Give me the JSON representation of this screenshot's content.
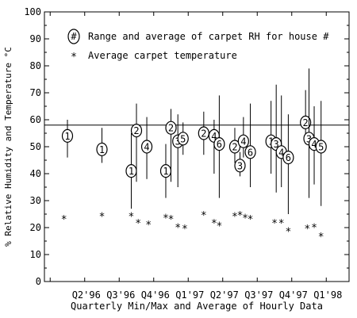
{
  "chart_data": {
    "type": "scatter",
    "xlabel": "Quarterly Min/Max and Average of Hourly Data",
    "ylabel": "% Relative Humidity and Temperature °C",
    "ylim": [
      0,
      100
    ],
    "y_ticks": [
      "0",
      "10",
      "20",
      "30",
      "40",
      "50",
      "60",
      "70",
      "80",
      "90",
      "100"
    ],
    "x_ticks": [
      "Q2'96",
      "Q3'96",
      "Q4'96",
      "Q1'97",
      "Q2'97",
      "Q3'97",
      "Q4'97",
      "Q1'98"
    ],
    "x_range": [
      0,
      9
    ],
    "reference_line_y": 58,
    "legend": {
      "placement": "top-center",
      "rh_marker": "#",
      "rh_label": "Range and average of carpet RH for house #",
      "temp_marker": "*",
      "temp_label": "Average carpet temperature"
    },
    "rh_series": [
      {
        "house": "1",
        "x": 1.0,
        "avg": 54,
        "min": 46,
        "max": 60
      },
      {
        "house": "1",
        "x": 2.0,
        "avg": 49,
        "min": 44,
        "max": 57
      },
      {
        "house": "1",
        "x": 2.85,
        "avg": 41,
        "min": 27,
        "max": 55
      },
      {
        "house": "2",
        "x": 3.0,
        "avg": 56,
        "min": 37,
        "max": 66
      },
      {
        "house": "4",
        "x": 3.3,
        "avg": 50,
        "min": 38,
        "max": 61
      },
      {
        "house": "1",
        "x": 3.85,
        "avg": 41,
        "min": 31,
        "max": 51
      },
      {
        "house": "2",
        "x": 4.0,
        "avg": 57,
        "min": 37,
        "max": 64
      },
      {
        "house": "3",
        "x": 4.2,
        "avg": 52,
        "min": 35,
        "max": 62
      },
      {
        "house": "5",
        "x": 4.35,
        "avg": 53,
        "min": 47,
        "max": 59
      },
      {
        "house": "2",
        "x": 4.95,
        "avg": 55,
        "min": 47,
        "max": 63
      },
      {
        "house": "4",
        "x": 5.25,
        "avg": 54,
        "min": 40,
        "max": 60
      },
      {
        "house": "6",
        "x": 5.4,
        "avg": 51,
        "min": 31,
        "max": 69
      },
      {
        "house": "2",
        "x": 5.85,
        "avg": 50,
        "min": 44,
        "max": 57
      },
      {
        "house": "3",
        "x": 6.0,
        "avg": 43,
        "min": 39,
        "max": 48
      },
      {
        "house": "4",
        "x": 6.1,
        "avg": 52,
        "min": 46,
        "max": 61
      },
      {
        "house": "6",
        "x": 6.3,
        "avg": 48,
        "min": 35,
        "max": 66
      },
      {
        "house": "1",
        "x": 6.9,
        "avg": 52,
        "min": 40,
        "max": 67
      },
      {
        "house": "3",
        "x": 7.05,
        "avg": 51,
        "min": 33,
        "max": 73
      },
      {
        "house": "4",
        "x": 7.2,
        "avg": 48,
        "min": 35,
        "max": 69
      },
      {
        "house": "6",
        "x": 7.4,
        "avg": 46,
        "min": 25,
        "max": 62
      },
      {
        "house": "2",
        "x": 7.9,
        "avg": 59,
        "min": 51,
        "max": 71
      },
      {
        "house": "3",
        "x": 8.0,
        "avg": 53,
        "min": 31,
        "max": 79
      },
      {
        "house": "4",
        "x": 8.15,
        "avg": 51,
        "min": 36,
        "max": 65
      },
      {
        "house": "5",
        "x": 8.35,
        "avg": 50,
        "min": 28,
        "max": 67
      }
    ],
    "temp_series": [
      {
        "x": 0.9,
        "y": 23.5
      },
      {
        "x": 2.0,
        "y": 24.5
      },
      {
        "x": 2.85,
        "y": 24.5
      },
      {
        "x": 3.05,
        "y": 22
      },
      {
        "x": 3.35,
        "y": 21.5
      },
      {
        "x": 3.85,
        "y": 24
      },
      {
        "x": 4.0,
        "y": 23.5
      },
      {
        "x": 4.2,
        "y": 20.5
      },
      {
        "x": 4.4,
        "y": 20
      },
      {
        "x": 4.95,
        "y": 25
      },
      {
        "x": 5.25,
        "y": 22
      },
      {
        "x": 5.4,
        "y": 21
      },
      {
        "x": 5.85,
        "y": 24.5
      },
      {
        "x": 6.0,
        "y": 25
      },
      {
        "x": 6.15,
        "y": 24
      },
      {
        "x": 6.3,
        "y": 23.5
      },
      {
        "x": 7.0,
        "y": 22
      },
      {
        "x": 7.2,
        "y": 22
      },
      {
        "x": 7.4,
        "y": 19
      },
      {
        "x": 7.95,
        "y": 20
      },
      {
        "x": 8.15,
        "y": 20.5
      },
      {
        "x": 8.35,
        "y": 17
      }
    ]
  }
}
